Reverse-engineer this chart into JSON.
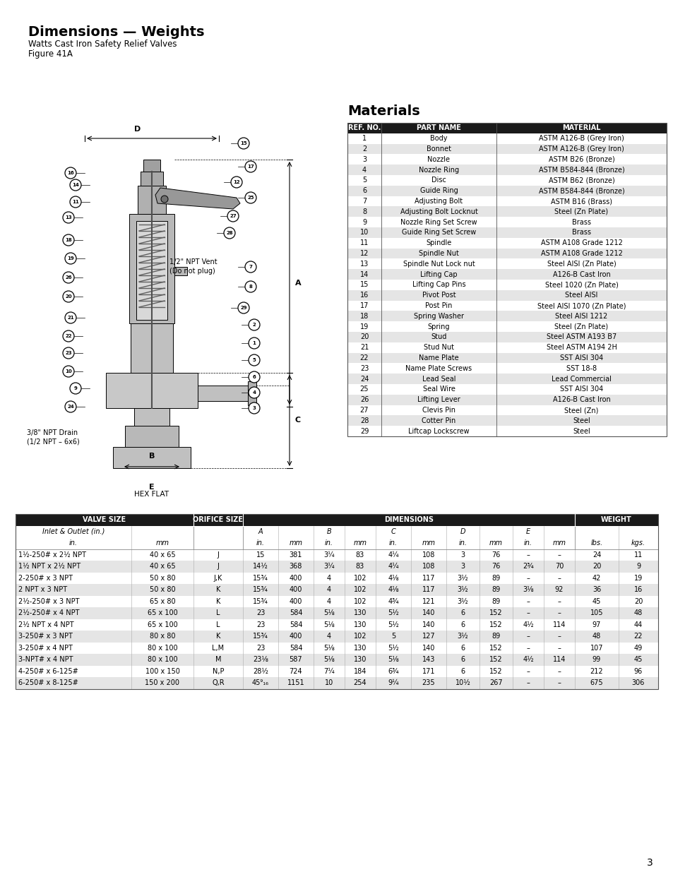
{
  "title": "Dimensions — Weights",
  "subtitle": "Watts Cast Iron Safety Relief Valves",
  "figure_label": "Figure 41A",
  "materials_title": "Materials",
  "materials_headers": [
    "REF. NO.",
    "PART NAME",
    "MATERIAL"
  ],
  "materials_data": [
    [
      "1",
      "Body",
      "ASTM A126-B (Grey Iron)"
    ],
    [
      "2",
      "Bonnet",
      "ASTM A126-B (Grey Iron)"
    ],
    [
      "3",
      "Nozzle",
      "ASTM B26 (Bronze)"
    ],
    [
      "4",
      "Nozzle Ring",
      "ASTM B584-844 (Bronze)"
    ],
    [
      "5",
      "Disc",
      "ASTM B62 (Bronze)"
    ],
    [
      "6",
      "Guide Ring",
      "ASTM B584-844 (Bronze)"
    ],
    [
      "7",
      "Adjusting Bolt",
      "ASTM B16 (Brass)"
    ],
    [
      "8",
      "Adjusting Bolt Locknut",
      "Steel (Zn Plate)"
    ],
    [
      "9",
      "Nozzle Ring Set Screw",
      "Brass"
    ],
    [
      "10",
      "Guide Ring Set Screw",
      "Brass"
    ],
    [
      "11",
      "Spindle",
      "ASTM A108 Grade 1212"
    ],
    [
      "12",
      "Spindle Nut",
      "ASTM A108 Grade 1212"
    ],
    [
      "13",
      "Spindle Nut Lock nut",
      "Steel AISI (Zn Plate)"
    ],
    [
      "14",
      "Lifting Cap",
      "A126-B Cast Iron"
    ],
    [
      "15",
      "Lifting Cap Pins",
      "Steel 1020 (Zn Plate)"
    ],
    [
      "16",
      "Pivot Post",
      "Steel AISI"
    ],
    [
      "17",
      "Post Pin",
      "Steel AISI 1070 (Zn Plate)"
    ],
    [
      "18",
      "Spring Washer",
      "Steel AISI 1212"
    ],
    [
      "19",
      "Spring",
      "Steel (Zn Plate)"
    ],
    [
      "20",
      "Stud",
      "Steel ASTM A193 B7"
    ],
    [
      "21",
      "Stud Nut",
      "Steel ASTM A194 2H"
    ],
    [
      "22",
      "Name Plate",
      "SST AISI 304"
    ],
    [
      "23",
      "Name Plate Screws",
      "SST 18-8"
    ],
    [
      "24",
      "Lead Seal",
      "Lead Commercial"
    ],
    [
      "25",
      "Seal Wire",
      "SST AISI 304"
    ],
    [
      "26",
      "Lifting Lever",
      "A126-B Cast Iron"
    ],
    [
      "27",
      "Clevis Pin",
      "Steel (Zn)"
    ],
    [
      "28",
      "Cotter Pin",
      "Steel"
    ],
    [
      "29",
      "Liftcap Lockscrew",
      "Steel"
    ]
  ],
  "dim_data": [
    [
      "1½-250# x 2½ NPT",
      "40 x 65",
      "J",
      "15",
      "381",
      "3¼",
      "83",
      "4¼",
      "108",
      "3",
      "76",
      "–",
      "–",
      "24",
      "11"
    ],
    [
      "1½ NPT x 2½ NPT",
      "40 x 65",
      "J",
      "14½",
      "368",
      "3¼",
      "83",
      "4¼",
      "108",
      "3",
      "76",
      "2¾",
      "70",
      "20",
      "9"
    ],
    [
      "2-250# x 3 NPT",
      "50 x 80",
      "J,K",
      "15¾",
      "400",
      "4",
      "102",
      "4⅛",
      "117",
      "3½",
      "89",
      "–",
      "–",
      "42",
      "19"
    ],
    [
      "2 NPT x 3 NPT",
      "50 x 80",
      "K",
      "15¾",
      "400",
      "4",
      "102",
      "4⅛",
      "117",
      "3½",
      "89",
      "3⅛",
      "92",
      "36",
      "16"
    ],
    [
      "2½-250# x 3 NPT",
      "65 x 80",
      "K",
      "15¾",
      "400",
      "4",
      "102",
      "4¾",
      "121",
      "3½",
      "89",
      "–",
      "–",
      "45",
      "20"
    ],
    [
      "2½-250# x 4 NPT",
      "65 x 100",
      "L",
      "23",
      "584",
      "5⅛",
      "130",
      "5½",
      "140",
      "6",
      "152",
      "–",
      "–",
      "105",
      "48"
    ],
    [
      "2½ NPT x 4 NPT",
      "65 x 100",
      "L",
      "23",
      "584",
      "5⅛",
      "130",
      "5½",
      "140",
      "6",
      "152",
      "4½",
      "114",
      "97",
      "44"
    ],
    [
      "3-250# x 3 NPT",
      "80 x 80",
      "K",
      "15¾",
      "400",
      "4",
      "102",
      "5",
      "127",
      "3½",
      "89",
      "–",
      "–",
      "48",
      "22"
    ],
    [
      "3-250# x 4 NPT",
      "80 x 100",
      "L,M",
      "23",
      "584",
      "5⅛",
      "130",
      "5½",
      "140",
      "6",
      "152",
      "–",
      "–",
      "107",
      "49"
    ],
    [
      "3-NPT# x 4 NPT",
      "80 x 100",
      "M",
      "23⅛",
      "587",
      "5⅛",
      "130",
      "5⅛",
      "143",
      "6",
      "152",
      "4½",
      "114",
      "99",
      "45"
    ],
    [
      "4-250# x 6-125#",
      "100 x 150",
      "N,P",
      "28½",
      "724",
      "7¼",
      "184",
      "6¾",
      "171",
      "6",
      "152",
      "–",
      "–",
      "212",
      "96"
    ],
    [
      "6-250# x 8-125#",
      "150 x 200",
      "Q,R",
      "45⁹₁₆",
      "1151",
      "10",
      "254",
      "9¼",
      "235",
      "10½",
      "267",
      "–",
      "–",
      "675",
      "306"
    ]
  ],
  "page_number": "3",
  "bg_color": "#ffffff",
  "header_bg": "#1a1a1a",
  "header_text": "#ffffff",
  "row_alt_bg": "#e5e5e5",
  "row_bg": "#ffffff",
  "table_border": "#555555"
}
